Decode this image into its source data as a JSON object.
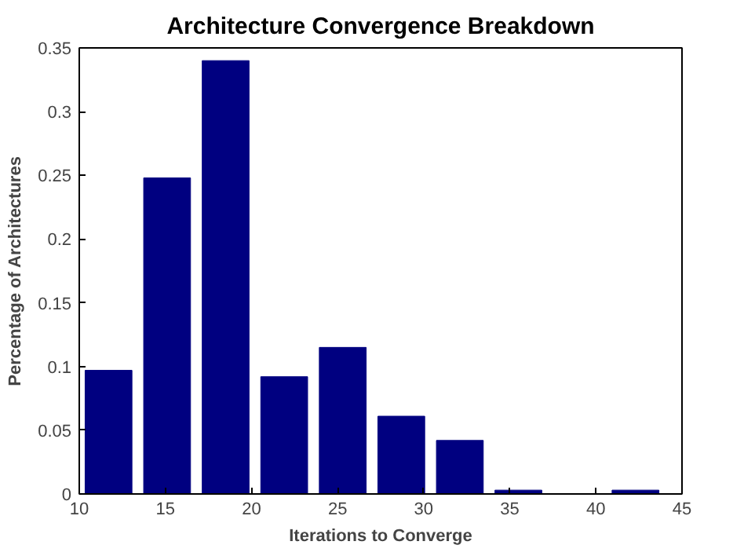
{
  "chart_data": {
    "type": "histogram",
    "title": "Architecture Convergence Breakdown",
    "xlabel": "Iterations to Converge",
    "ylabel": "Percentage of Architectures",
    "bins": [
      10,
      13.4,
      16.8,
      20.2,
      23.6,
      27,
      30.4,
      33.8,
      37.2,
      40.6,
      44
    ],
    "values": [
      0.097,
      0.248,
      0.34,
      0.092,
      0.115,
      0.061,
      0.042,
      0.003,
      0,
      0.003
    ],
    "color": "#000080",
    "xlim": [
      10,
      45
    ],
    "xticks": [
      10,
      15,
      20,
      25,
      30,
      35,
      40,
      45
    ],
    "ylim": [
      0,
      0.35
    ],
    "yticks": [
      0,
      0.05,
      0.1,
      0.15,
      0.2,
      0.25,
      0.3,
      0.35
    ],
    "grid": false
  }
}
